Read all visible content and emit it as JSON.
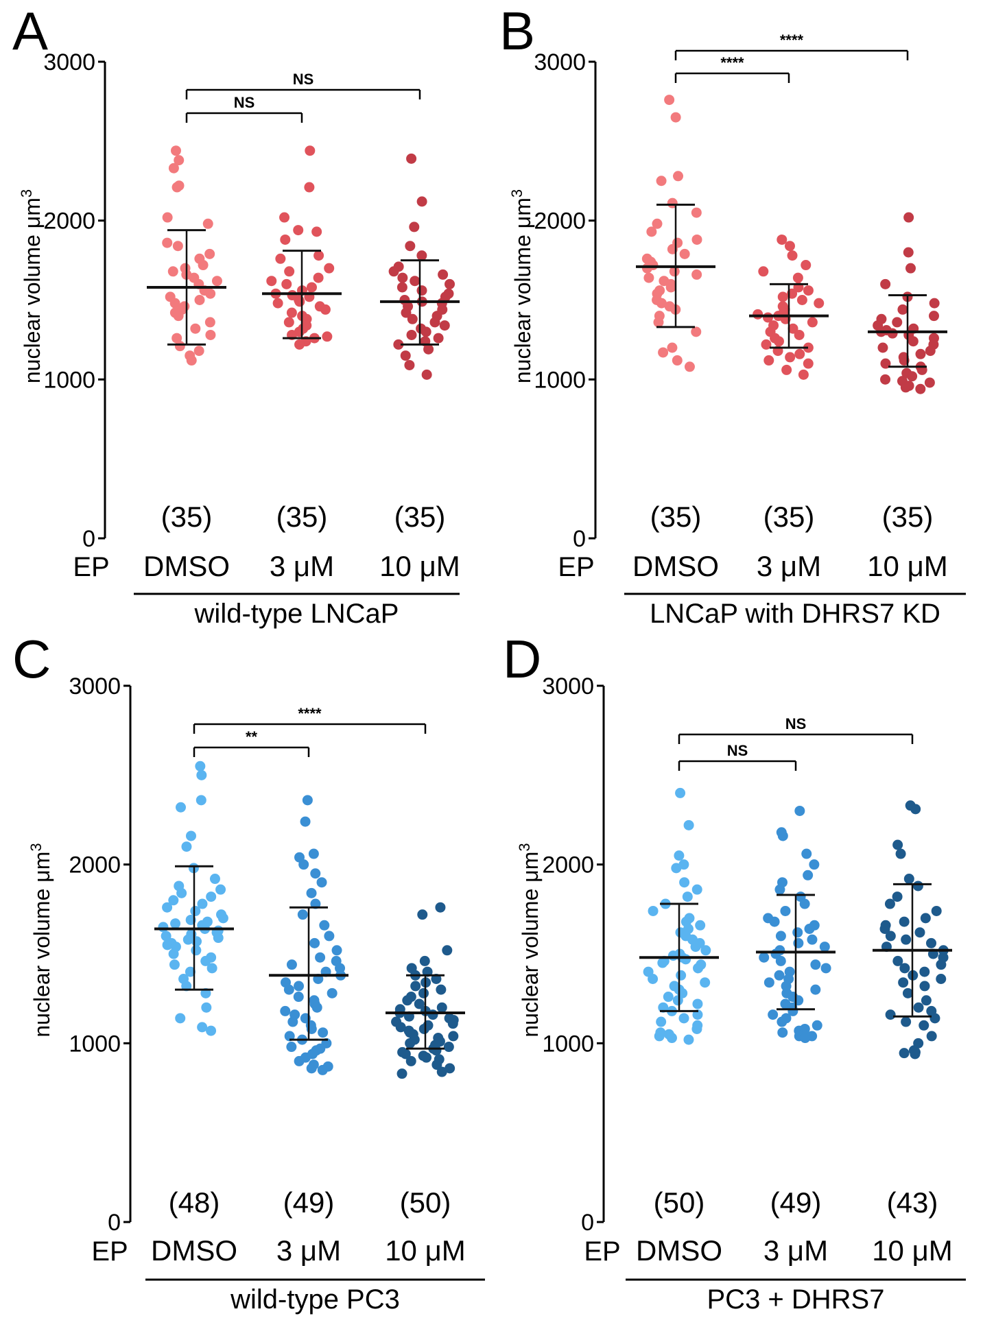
{
  "figure": {
    "ep_label": "EP",
    "y_axis_label": "nuclear volume μm3",
    "y_axis_label_base": "nuclear volume μm",
    "y_axis_label_sup": "3"
  },
  "chart_data": [
    {
      "type": "scatter",
      "panel": "A",
      "condition": "wild-type LNCaP",
      "ylabel": "nuclear volume μm3",
      "ylim": [
        0,
        3000
      ],
      "yticks": [
        0,
        1000,
        2000,
        3000
      ],
      "categories": [
        "DMSO",
        "3 μM",
        "10 μM"
      ],
      "n_labels": [
        "(35)",
        "(35)",
        "(35)"
      ],
      "colors": [
        "#f27a7d",
        "#e0535b",
        "#c13b46"
      ],
      "groups": [
        {
          "name": "DMSO",
          "mean": 1580,
          "sd_low": 1220,
          "sd_high": 1940,
          "values": [
            2440,
            2380,
            2330,
            2220,
            2210,
            2020,
            1980,
            1860,
            1840,
            1790,
            1760,
            1720,
            1700,
            1680,
            1660,
            1640,
            1620,
            1600,
            1560,
            1540,
            1520,
            1500,
            1480,
            1460,
            1440,
            1420,
            1400,
            1360,
            1320,
            1280,
            1260,
            1210,
            1180,
            1150,
            1120
          ]
        },
        {
          "name": "3 μM",
          "mean": 1540,
          "sd_low": 1260,
          "sd_high": 1810,
          "values": [
            2440,
            2210,
            2020,
            1940,
            1930,
            1880,
            1780,
            1760,
            1700,
            1680,
            1640,
            1620,
            1600,
            1580,
            1560,
            1540,
            1530,
            1520,
            1500,
            1490,
            1480,
            1460,
            1440,
            1420,
            1400,
            1380,
            1360,
            1340,
            1320,
            1300,
            1280,
            1270,
            1260,
            1240,
            1220
          ]
        },
        {
          "name": "10 μM",
          "mean": 1490,
          "sd_low": 1220,
          "sd_high": 1750,
          "values": [
            2390,
            2120,
            1960,
            1840,
            1780,
            1710,
            1680,
            1660,
            1640,
            1620,
            1600,
            1580,
            1560,
            1540,
            1520,
            1500,
            1490,
            1480,
            1460,
            1440,
            1420,
            1400,
            1380,
            1360,
            1340,
            1320,
            1300,
            1280,
            1260,
            1240,
            1220,
            1190,
            1150,
            1090,
            1030
          ]
        }
      ],
      "significance": [
        {
          "label": "NS",
          "from": 0,
          "to": 1
        },
        {
          "label": "NS",
          "from": 0,
          "to": 2
        }
      ]
    },
    {
      "type": "scatter",
      "panel": "B",
      "condition": "LNCaP with DHRS7 KD",
      "ylabel": "nuclear volume μm3",
      "ylim": [
        0,
        3000
      ],
      "yticks": [
        0,
        1000,
        2000,
        3000
      ],
      "categories": [
        "DMSO",
        "3 μM",
        "10 μM"
      ],
      "n_labels": [
        "(35)",
        "(35)",
        "(35)"
      ],
      "colors": [
        "#f27a7d",
        "#e0535b",
        "#c13b46"
      ],
      "groups": [
        {
          "name": "DMSO",
          "mean": 1710,
          "sd_low": 1330,
          "sd_high": 2100,
          "values": [
            2760,
            2650,
            2280,
            2250,
            2110,
            2050,
            1980,
            1930,
            1880,
            1860,
            1820,
            1790,
            1760,
            1740,
            1720,
            1700,
            1680,
            1660,
            1640,
            1620,
            1600,
            1580,
            1560,
            1540,
            1500,
            1480,
            1460,
            1440,
            1400,
            1360,
            1300,
            1200,
            1170,
            1120,
            1080
          ]
        },
        {
          "name": "3 μM",
          "mean": 1400,
          "sd_low": 1200,
          "sd_high": 1600,
          "values": [
            1880,
            1840,
            1780,
            1720,
            1680,
            1640,
            1580,
            1560,
            1540,
            1520,
            1500,
            1480,
            1460,
            1440,
            1420,
            1410,
            1400,
            1390,
            1380,
            1360,
            1340,
            1320,
            1300,
            1280,
            1260,
            1240,
            1220,
            1200,
            1180,
            1160,
            1140,
            1120,
            1100,
            1060,
            1030
          ]
        },
        {
          "name": "10 μM",
          "mean": 1300,
          "sd_low": 1080,
          "sd_high": 1530,
          "values": [
            2020,
            1800,
            1700,
            1600,
            1520,
            1480,
            1440,
            1400,
            1380,
            1360,
            1340,
            1320,
            1310,
            1300,
            1290,
            1280,
            1260,
            1240,
            1220,
            1200,
            1180,
            1160,
            1140,
            1120,
            1100,
            1080,
            1060,
            1040,
            1020,
            1000,
            990,
            980,
            960,
            950,
            940
          ]
        }
      ],
      "significance": [
        {
          "label": "****",
          "from": 0,
          "to": 1
        },
        {
          "label": "****",
          "from": 0,
          "to": 2
        }
      ]
    },
    {
      "type": "scatter",
      "panel": "C",
      "condition": "wild-type PC3",
      "ylabel": "nuclear volume μm3",
      "ylim": [
        0,
        3000
      ],
      "yticks": [
        0,
        1000,
        2000,
        3000
      ],
      "categories": [
        "DMSO",
        "3 μM",
        "10 μM"
      ],
      "n_labels": [
        "(48)",
        "(49)",
        "(50)"
      ],
      "colors": [
        "#5ab4f0",
        "#3a8fd4",
        "#1e5a8c"
      ],
      "groups": [
        {
          "name": "DMSO",
          "mean": 1640,
          "sd_low": 1300,
          "sd_high": 1990,
          "values": [
            2550,
            2500,
            2360,
            2320,
            2160,
            2100,
            1980,
            1920,
            1880,
            1860,
            1840,
            1820,
            1800,
            1780,
            1760,
            1740,
            1720,
            1700,
            1690,
            1680,
            1670,
            1660,
            1650,
            1640,
            1630,
            1620,
            1610,
            1600,
            1590,
            1580,
            1570,
            1560,
            1550,
            1540,
            1520,
            1500,
            1480,
            1460,
            1440,
            1420,
            1400,
            1360,
            1320,
            1280,
            1200,
            1140,
            1090,
            1070
          ]
        },
        {
          "name": "3 μM",
          "mean": 1380,
          "sd_low": 1020,
          "sd_high": 1760,
          "values": [
            2360,
            2240,
            2060,
            2040,
            2000,
            1950,
            1900,
            1840,
            1780,
            1720,
            1660,
            1600,
            1560,
            1520,
            1480,
            1460,
            1440,
            1420,
            1400,
            1380,
            1360,
            1340,
            1320,
            1300,
            1280,
            1260,
            1240,
            1220,
            1200,
            1180,
            1160,
            1140,
            1120,
            1100,
            1080,
            1060,
            1040,
            1020,
            1000,
            980,
            970,
            960,
            940,
            920,
            900,
            880,
            870,
            860,
            850
          ]
        },
        {
          "name": "10 μM",
          "mean": 1170,
          "sd_low": 970,
          "sd_high": 1380,
          "values": [
            1760,
            1720,
            1520,
            1460,
            1420,
            1400,
            1380,
            1360,
            1340,
            1320,
            1300,
            1280,
            1260,
            1240,
            1220,
            1200,
            1190,
            1180,
            1170,
            1160,
            1150,
            1140,
            1130,
            1120,
            1110,
            1100,
            1090,
            1080,
            1070,
            1060,
            1050,
            1040,
            1030,
            1020,
            1010,
            1000,
            990,
            980,
            970,
            960,
            950,
            940,
            930,
            920,
            910,
            900,
            880,
            860,
            840,
            830
          ]
        }
      ],
      "significance": [
        {
          "label": "**",
          "from": 0,
          "to": 1
        },
        {
          "label": "****",
          "from": 0,
          "to": 2
        }
      ]
    },
    {
      "type": "scatter",
      "panel": "D",
      "condition": "PC3 + DHRS7",
      "ylabel": "nuclear volume μm3",
      "ylim": [
        0,
        3000
      ],
      "yticks": [
        0,
        1000,
        2000,
        3000
      ],
      "categories": [
        "DMSO",
        "3 μM",
        "10 μM"
      ],
      "n_labels": [
        "(50)",
        "(49)",
        "(43)"
      ],
      "colors": [
        "#5ab4f0",
        "#3a8fd4",
        "#1e5a8c"
      ],
      "groups": [
        {
          "name": "DMSO",
          "mean": 1480,
          "sd_low": 1180,
          "sd_high": 1780,
          "values": [
            2400,
            2220,
            2050,
            2000,
            1980,
            1900,
            1860,
            1820,
            1780,
            1740,
            1700,
            1680,
            1660,
            1640,
            1620,
            1600,
            1580,
            1560,
            1540,
            1520,
            1500,
            1490,
            1480,
            1470,
            1460,
            1450,
            1440,
            1420,
            1400,
            1380,
            1360,
            1340,
            1320,
            1300,
            1280,
            1260,
            1240,
            1220,
            1200,
            1180,
            1160,
            1140,
            1120,
            1100,
            1080,
            1060,
            1050,
            1040,
            1030,
            1020
          ]
        },
        {
          "name": "3 μM",
          "mean": 1510,
          "sd_low": 1190,
          "sd_high": 1830,
          "values": [
            2300,
            2180,
            2160,
            2060,
            2000,
            1940,
            1900,
            1860,
            1820,
            1780,
            1740,
            1700,
            1680,
            1660,
            1640,
            1620,
            1600,
            1580,
            1560,
            1540,
            1520,
            1500,
            1480,
            1460,
            1440,
            1420,
            1400,
            1380,
            1360,
            1340,
            1320,
            1300,
            1280,
            1260,
            1240,
            1220,
            1200,
            1180,
            1160,
            1140,
            1120,
            1100,
            1080,
            1070,
            1060,
            1050,
            1040,
            1040,
            1030
          ]
        },
        {
          "name": "10 μM",
          "mean": 1520,
          "sd_low": 1150,
          "sd_high": 1890,
          "values": [
            2330,
            2310,
            2110,
            2060,
            1920,
            1880,
            1820,
            1780,
            1740,
            1700,
            1680,
            1660,
            1640,
            1620,
            1600,
            1580,
            1560,
            1540,
            1520,
            1500,
            1480,
            1460,
            1440,
            1420,
            1400,
            1380,
            1360,
            1340,
            1320,
            1280,
            1240,
            1200,
            1180,
            1160,
            1140,
            1120,
            1100,
            1040,
            1000,
            960,
            950,
            945,
            940
          ]
        }
      ],
      "significance": [
        {
          "label": "NS",
          "from": 0,
          "to": 1
        },
        {
          "label": "NS",
          "from": 0,
          "to": 2
        }
      ]
    }
  ]
}
